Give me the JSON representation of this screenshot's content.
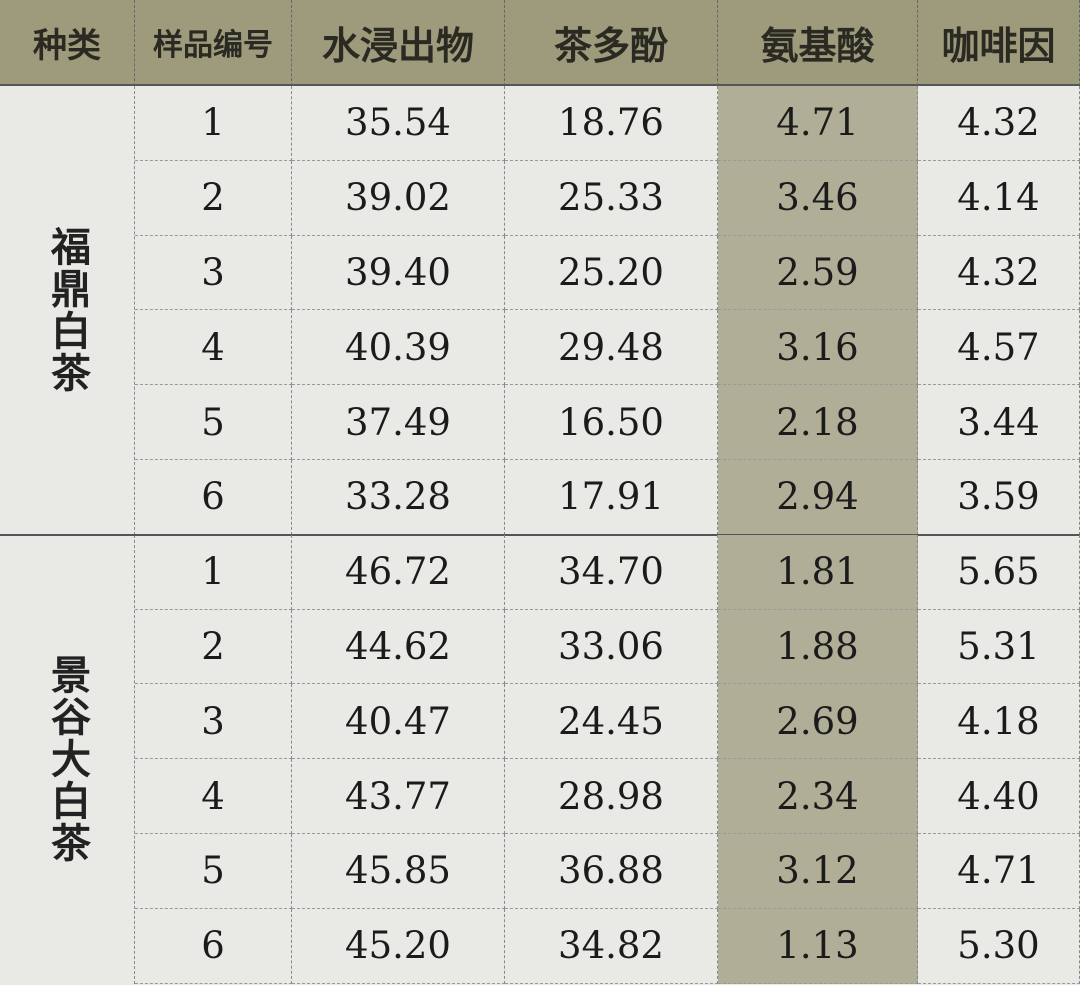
{
  "headers": [
    "种类",
    "样品编号",
    "水浸出物",
    "茶多酚",
    "氨基酸",
    "咖啡因"
  ],
  "groups": [
    {
      "name": "福鼎白茶",
      "rows": [
        [
          "1",
          "35.54",
          "18.76",
          "4.71",
          "4.32"
        ],
        [
          "2",
          "39.02",
          "25.33",
          "3.46",
          "4.14"
        ],
        [
          "3",
          "39.40",
          "25.20",
          "2.59",
          "4.32"
        ],
        [
          "4",
          "40.39",
          "29.48",
          "3.16",
          "4.57"
        ],
        [
          "5",
          "37.49",
          "16.50",
          "2.18",
          "3.44"
        ],
        [
          "6",
          "33.28",
          "17.91",
          "2.94",
          "3.59"
        ]
      ]
    },
    {
      "name": "景谷大白茶",
      "rows": [
        [
          "1",
          "46.72",
          "34.70",
          "1.81",
          "5.65"
        ],
        [
          "2",
          "44.62",
          "33.06",
          "1.88",
          "5.31"
        ],
        [
          "3",
          "40.47",
          "24.45",
          "2.69",
          "4.18"
        ],
        [
          "4",
          "43.77",
          "28.98",
          "2.34",
          "4.40"
        ],
        [
          "5",
          "45.85",
          "36.88",
          "3.12",
          "4.71"
        ],
        [
          "6",
          "45.20",
          "34.82",
          "1.13",
          "5.30"
        ]
      ]
    }
  ],
  "colors": {
    "header": "#9e9b7c",
    "highlight_column": "#b0ae96",
    "body": "#e9e9e6"
  }
}
